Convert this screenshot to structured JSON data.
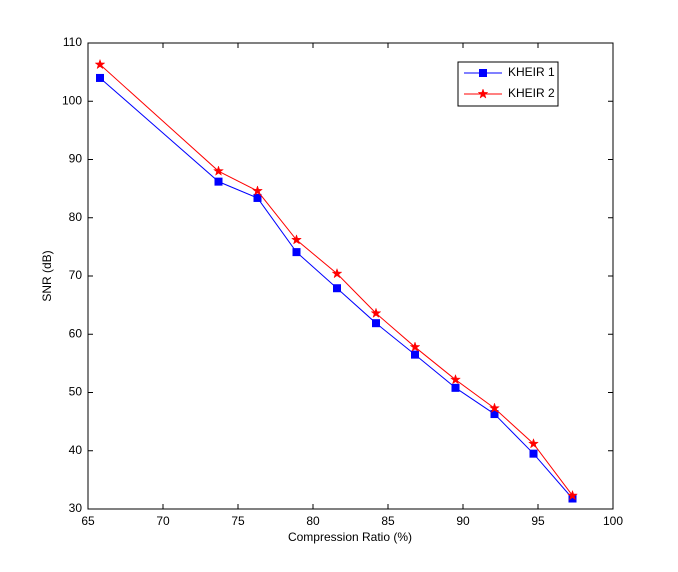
{
  "chart_data": {
    "type": "line",
    "x_label": "Compression Ratio (%)",
    "y_label": "SNR (dB)",
    "x": [
      65.8,
      73.7,
      76.3,
      78.9,
      81.6,
      84.2,
      86.8,
      89.5,
      92.1,
      94.7,
      97.3
    ],
    "series": [
      {
        "name": "KHEIR 1",
        "color": "#0000ff",
        "marker": "square",
        "values": [
          104,
          86.2,
          83.4,
          74.1,
          67.9,
          61.9,
          56.5,
          50.8,
          46.3,
          39.5,
          31.8
        ]
      },
      {
        "name": "KHEIR 2",
        "color": "#ff0000",
        "marker": "star",
        "values": [
          106.3,
          88,
          84.6,
          76.2,
          70.4,
          63.6,
          57.8,
          52.2,
          47.3,
          41.2,
          32.3
        ]
      }
    ],
    "xlim": [
      65,
      100
    ],
    "xticks": [
      65,
      70,
      75,
      80,
      85,
      90,
      95,
      100
    ],
    "ylim": [
      30,
      110
    ],
    "yticks": [
      30,
      40,
      50,
      60,
      70,
      80,
      90,
      100,
      110
    ],
    "legend": "northeast",
    "grid": false
  }
}
